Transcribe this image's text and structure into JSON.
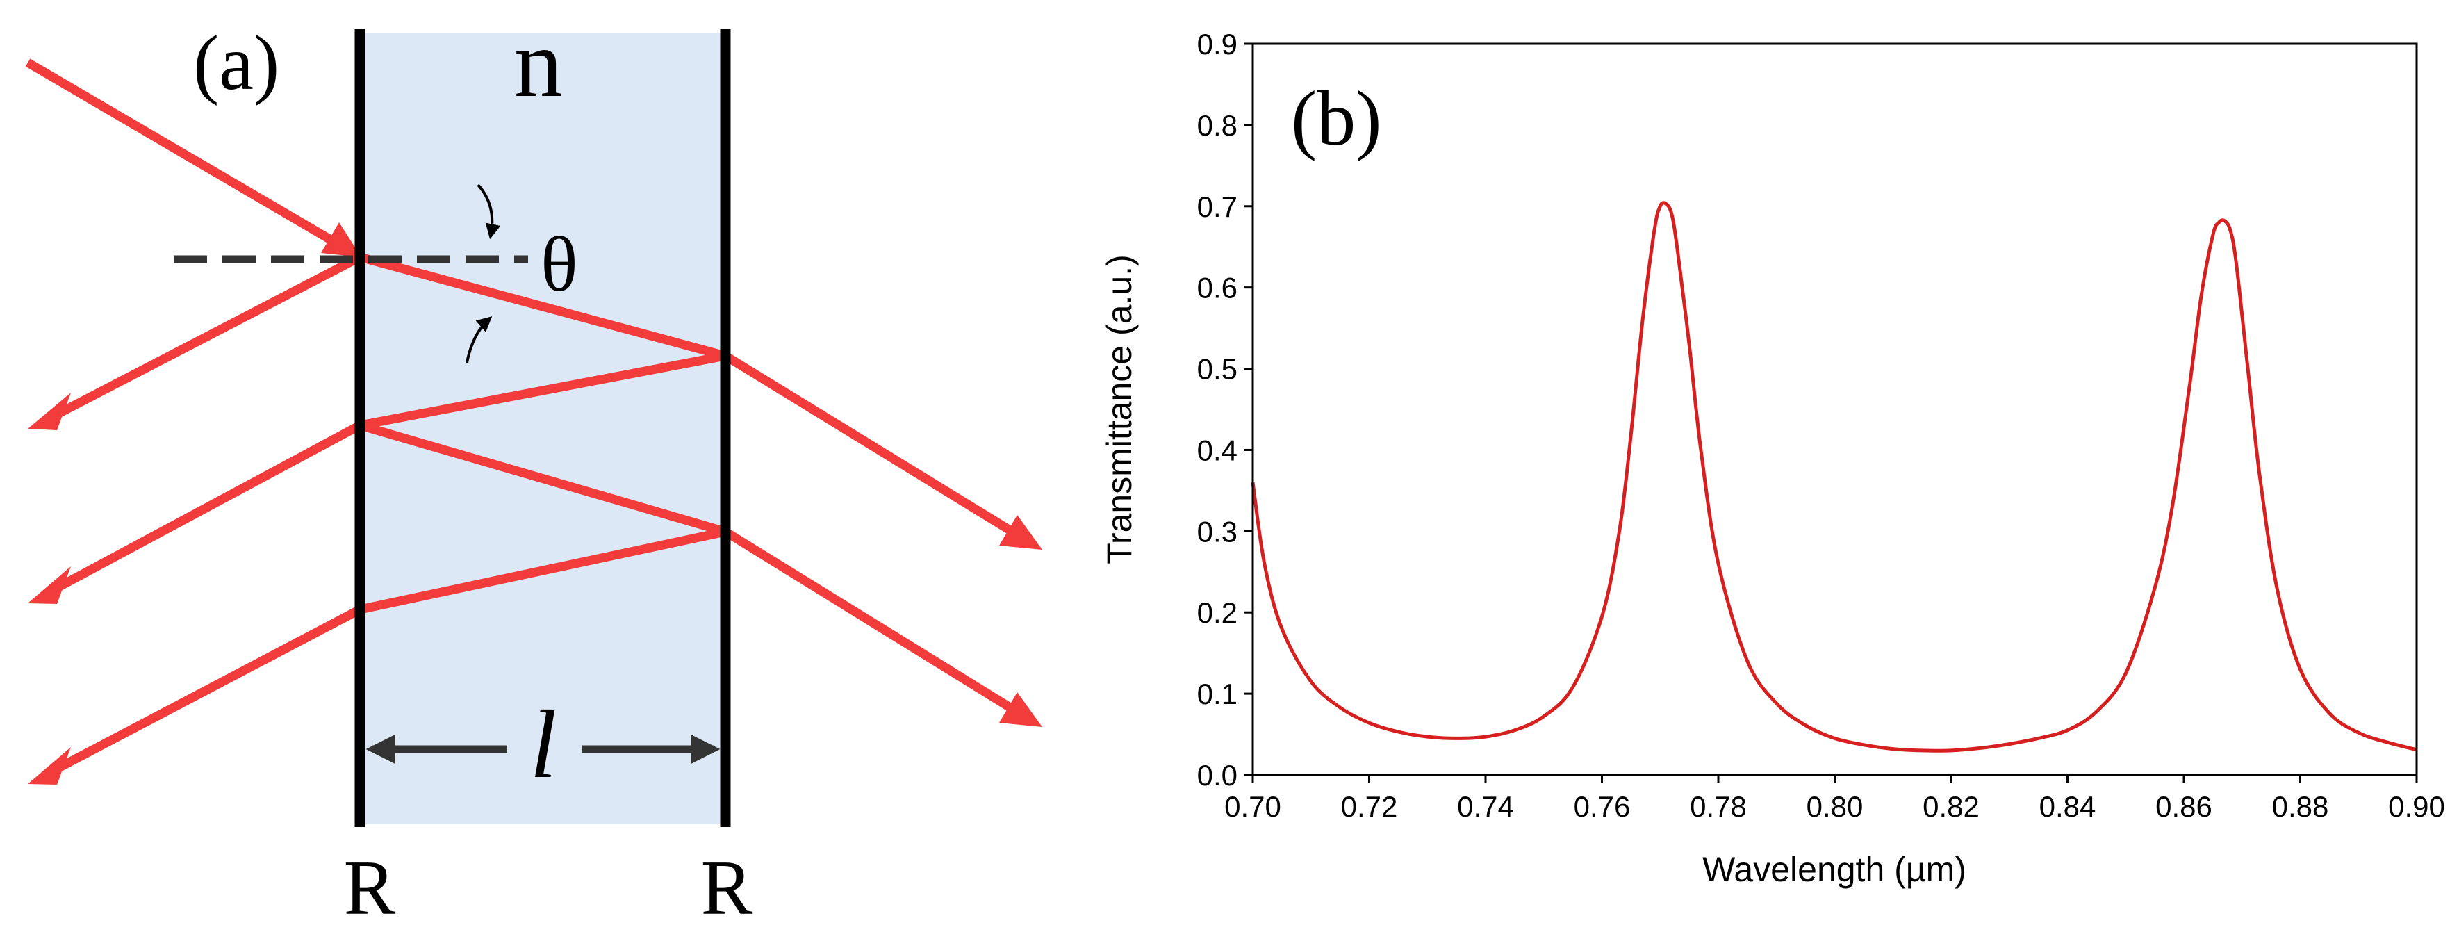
{
  "panel_a": {
    "label": "(a)",
    "index_label": "n",
    "angle_label": "θ",
    "length_label": "l",
    "left_mirror_label": "R",
    "right_mirror_label": "R",
    "colors": {
      "slab": "#dce8f5",
      "ray": "#f23b3b",
      "mirror": "#000000",
      "annotation": "#333333"
    }
  },
  "chart_data": {
    "type": "line",
    "panel_label": "(b)",
    "title": "",
    "xlabel": "Wavelength (µm)",
    "ylabel": "Transmittance (a.u.)",
    "xlim": [
      0.7,
      0.9
    ],
    "ylim": [
      0.0,
      0.9
    ],
    "xticks": [
      "0.70",
      "0.72",
      "0.74",
      "0.76",
      "0.78",
      "0.80",
      "0.82",
      "0.84",
      "0.86",
      "0.88",
      "0.90"
    ],
    "yticks": [
      "0.0",
      "0.1",
      "0.2",
      "0.3",
      "0.4",
      "0.5",
      "0.6",
      "0.7",
      "0.8",
      "0.9"
    ],
    "grid": false,
    "series": [
      {
        "color": "#d62020",
        "x": [
          0.7,
          0.702,
          0.705,
          0.71,
          0.715,
          0.72,
          0.725,
          0.73,
          0.735,
          0.74,
          0.745,
          0.75,
          0.755,
          0.76,
          0.763,
          0.765,
          0.767,
          0.769,
          0.77,
          0.771,
          0.772,
          0.773,
          0.775,
          0.777,
          0.78,
          0.785,
          0.79,
          0.795,
          0.8,
          0.805,
          0.81,
          0.815,
          0.82,
          0.825,
          0.83,
          0.835,
          0.84,
          0.845,
          0.85,
          0.855,
          0.858,
          0.861,
          0.863,
          0.865,
          0.866,
          0.867,
          0.868,
          0.869,
          0.871,
          0.873,
          0.876,
          0.88,
          0.885,
          0.89,
          0.895,
          0.9
        ],
        "y": [
          0.36,
          0.26,
          0.18,
          0.115,
          0.083,
          0.064,
          0.053,
          0.047,
          0.045,
          0.047,
          0.055,
          0.072,
          0.108,
          0.195,
          0.3,
          0.42,
          0.56,
          0.67,
          0.7,
          0.703,
          0.69,
          0.645,
          0.53,
          0.4,
          0.26,
          0.14,
          0.088,
          0.061,
          0.045,
          0.037,
          0.032,
          0.03,
          0.03,
          0.033,
          0.038,
          0.045,
          0.055,
          0.078,
          0.125,
          0.23,
          0.33,
          0.48,
          0.59,
          0.665,
          0.68,
          0.682,
          0.67,
          0.63,
          0.5,
          0.37,
          0.23,
          0.13,
          0.076,
          0.052,
          0.04,
          0.031
        ]
      }
    ]
  }
}
